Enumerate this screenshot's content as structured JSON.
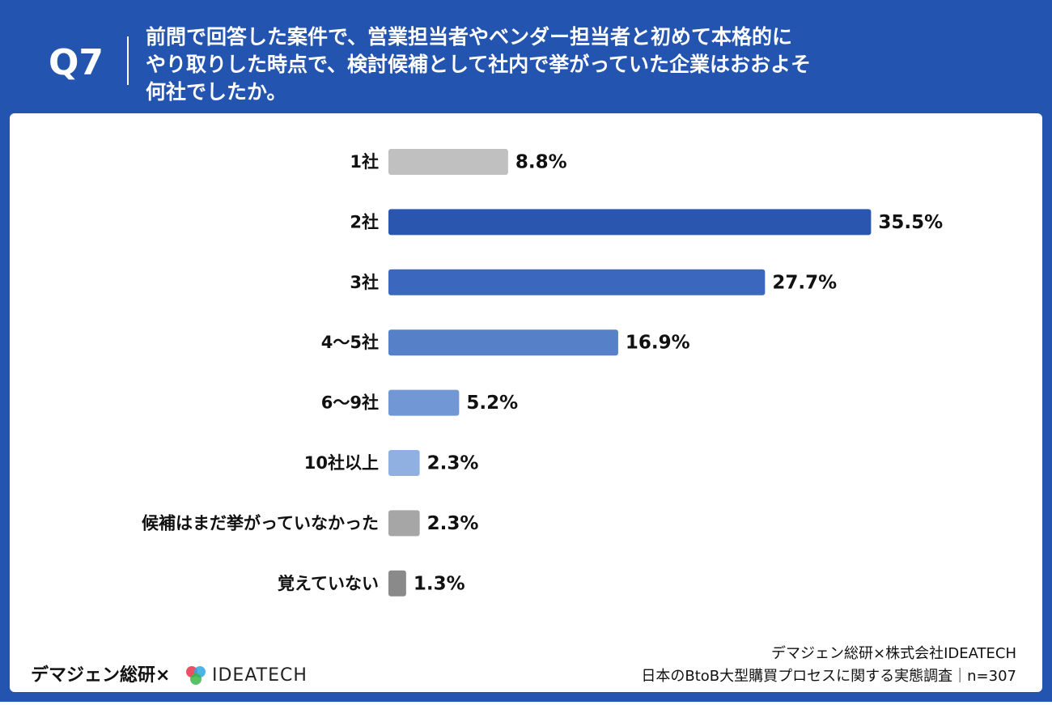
{
  "chart_data": {
    "type": "barh",
    "question_id": "Q7",
    "title_lines": [
      "前問で回答した案件で、営業担当者やベンダー担当者と初めて本格的に",
      "やり取りした時点で、検討候補として社内で挙がっていた企業はおおよそ",
      "何社でしたか。"
    ],
    "categories": [
      "1社",
      "2社",
      "3社",
      "4〜5社",
      "6〜9社",
      "10社以上",
      "候補はまだ挙がっていなかった",
      "覚えていない"
    ],
    "values": [
      8.8,
      35.5,
      27.7,
      16.9,
      5.2,
      2.3,
      2.3,
      1.3
    ],
    "value_labels": [
      "8.8%",
      "35.5%",
      "27.7%",
      "16.9%",
      "5.2%",
      "2.3%",
      "2.3%",
      "1.3%"
    ],
    "colors": [
      "#c0c0c0",
      "#2a56b0",
      "#3c67be",
      "#5680c8",
      "#7198d4",
      "#90b0e2",
      "#a6a6a6",
      "#8a8a8a"
    ]
  },
  "footer": {
    "brand": "デマジェン総研×",
    "logo": "IDEATECH",
    "source_lines": [
      "デマジェン総研×株式会社IDEATECH",
      "日本のBtoB大型購買プロセスに関する実態調査｜n=307"
    ]
  }
}
